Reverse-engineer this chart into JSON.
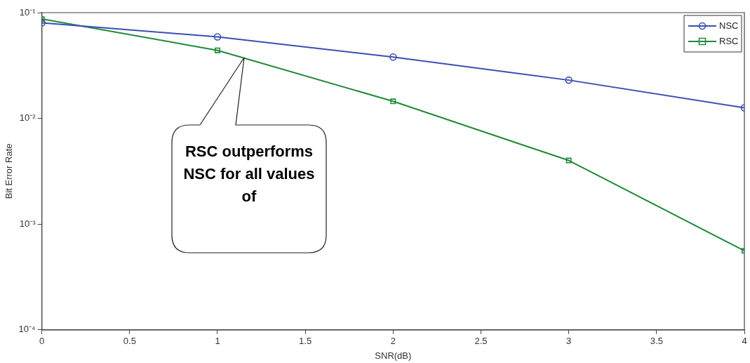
{
  "chart_data": {
    "type": "line",
    "xlabel": "SNR(dB)",
    "ylabel": "Bit Error Rate",
    "x": [
      0,
      1,
      2,
      3,
      4
    ],
    "series": [
      {
        "name": "NSC",
        "color": "#3a4fb5",
        "marker": "circle",
        "values": [
          0.08,
          0.059,
          0.038,
          0.023,
          0.0126
        ]
      },
      {
        "name": "RSC",
        "color": "#1f8a3a",
        "marker": "square",
        "values": [
          0.087,
          0.044,
          0.0145,
          0.004,
          0.00056
        ]
      }
    ],
    "log": "y",
    "xlim": [
      0,
      4
    ],
    "xticks": [
      0,
      0.5,
      1,
      1.5,
      2,
      2.5,
      3,
      3.5,
      4
    ],
    "ylim": [
      0.0001,
      0.1
    ],
    "yticks": [
      {
        "value": 0.0001,
        "label": "10⁻⁴"
      },
      {
        "value": 0.001,
        "label": "10⁻³"
      },
      {
        "value": 0.01,
        "label": "10⁻²"
      },
      {
        "value": 0.1,
        "label": "10⁻¹"
      }
    ],
    "grid": false,
    "legend": "top right",
    "line_style": "solid",
    "annotations": [
      "RSC outperforms NSC for all values of"
    ]
  }
}
